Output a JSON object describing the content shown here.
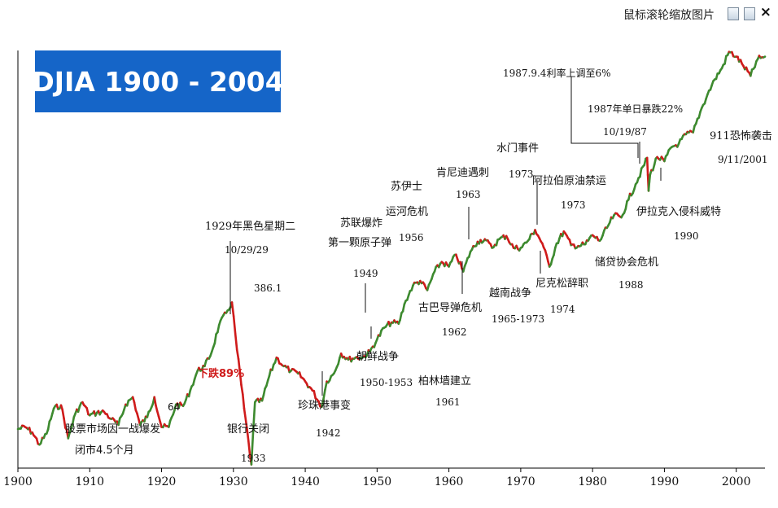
{
  "toolbar": {
    "hint": "鼠标滚轮缩放图片",
    "close": "×",
    "icons": [
      "save-icon",
      "print-icon"
    ]
  },
  "title_box": {
    "text": "DJIA  1900 - 2004",
    "bg": "#1565c8",
    "color": "#ffffff"
  },
  "colors": {
    "up": "#3d8a2f",
    "down": "#cf1b1b",
    "axis": "#000000"
  },
  "chart_data": {
    "type": "line",
    "title": "DJIA  1900 - 2004",
    "xlabel": "",
    "ylabel": "",
    "scale": "log",
    "xlim": [
      1900,
      2004
    ],
    "ylim": [
      40,
      11723
    ],
    "x_ticks": [
      1900,
      1910,
      1920,
      1930,
      1940,
      1950,
      1960,
      1970,
      1980,
      1990,
      2000
    ],
    "x_tick_labels": [
      "1900",
      "1910",
      "1920",
      "1930",
      "1940",
      "1950",
      "1960",
      "1970",
      "1980",
      "1990",
      "2000"
    ],
    "grid": false,
    "legend": "none",
    "series": [
      {
        "color_up": "#3d8a2f",
        "color_down": "#cf1b1b",
        "x": [
          1900,
          1901,
          1902,
          1903,
          1904,
          1905,
          1906,
          1907,
          1908,
          1909,
          1910,
          1911,
          1912,
          1913,
          1914,
          1915,
          1916,
          1917,
          1918,
          1919,
          1920,
          1921,
          1922,
          1923,
          1924,
          1925,
          1926,
          1927,
          1928,
          1929,
          1929.8,
          1930.5,
          1931.5,
          1932.5,
          1933,
          1934,
          1935,
          1936,
          1937,
          1938,
          1939,
          1940,
          1941,
          1942.3,
          1943,
          1944,
          1945,
          1946,
          1947,
          1948,
          1949,
          1950,
          1951,
          1952,
          1953,
          1954,
          1955,
          1956,
          1957,
          1958,
          1959,
          1960,
          1961,
          1962,
          1963,
          1964,
          1965,
          1966,
          1967,
          1968,
          1969,
          1970,
          1971,
          1972,
          1973,
          1974,
          1975,
          1976,
          1977,
          1978,
          1979,
          1980,
          1981,
          1982,
          1983,
          1984,
          1985,
          1986,
          1987.6,
          1987.8,
          1988,
          1989,
          1990,
          1991,
          1992,
          1993,
          1994,
          1995,
          1996,
          1997,
          1998,
          1999,
          2000,
          2001,
          2002,
          2003,
          2004
        ],
        "values": [
          68,
          70,
          65,
          55,
          64,
          90,
          94,
          60,
          84,
          98,
          82,
          85,
          86,
          78,
          72,
          95,
          105,
          72,
          80,
          105,
          70,
          70,
          95,
          93,
          115,
          150,
          160,
          195,
          280,
          330,
          381,
          200,
          90,
          42,
          98,
          100,
          140,
          180,
          160,
          150,
          145,
          130,
          115,
          92,
          130,
          145,
          190,
          175,
          180,
          180,
          195,
          230,
          270,
          290,
          285,
          390,
          480,
          510,
          450,
          580,
          660,
          620,
          730,
          580,
          760,
          870,
          900,
          800,
          900,
          940,
          800,
          800,
          880,
          1020,
          850,
          620,
          850,
          1000,
          830,
          820,
          840,
          950,
          880,
          1050,
          1250,
          1210,
          1540,
          1900,
          2720,
          1738,
          2160,
          2750,
          2600,
          3150,
          3300,
          3750,
          3850,
          5100,
          6450,
          7900,
          9200,
          11500,
          10780,
          9500,
          8300,
          10450,
          10780
        ]
      }
    ],
    "annotations": [
      {
        "text": "股票市场因一战爆发",
        "x": 1914
      },
      {
        "text": "闭市4.5个月",
        "x": 1914
      },
      {
        "text": "64",
        "x": 1921
      },
      {
        "text": "1929年黑色星期二",
        "x": 1929
      },
      {
        "text": "10/29/29",
        "x": 1929
      },
      {
        "text": "386.1",
        "x": 1929
      },
      {
        "text": "下跌89%",
        "x": 1931
      },
      {
        "text": "银行关闭",
        "x": 1933
      },
      {
        "text": "1933",
        "x": 1933
      },
      {
        "text": "珍珠港事变",
        "x": 1942
      },
      {
        "text": "1942",
        "x": 1942
      },
      {
        "text": "苏联爆炸",
        "x": 1949
      },
      {
        "text": "第一颗原子弹",
        "x": 1949
      },
      {
        "text": "1949",
        "x": 1949
      },
      {
        "text": "朝鲜战争",
        "x": 1950
      },
      {
        "text": "1950-1953",
        "x": 1950
      },
      {
        "text": "苏伊士",
        "x": 1956
      },
      {
        "text": "运河危机",
        "x": 1956
      },
      {
        "text": "1956",
        "x": 1956
      },
      {
        "text": "肯尼迪遇刺",
        "x": 1963
      },
      {
        "text": "1963",
        "x": 1963
      },
      {
        "text": "古巴导弹危机",
        "x": 1962
      },
      {
        "text": "1962",
        "x": 1962
      },
      {
        "text": "柏林墙建立",
        "x": 1961
      },
      {
        "text": "1961",
        "x": 1961
      },
      {
        "text": "水门事件",
        "x": 1973
      },
      {
        "text": "1973",
        "x": 1973
      },
      {
        "text": "越南战争",
        "x": 1965
      },
      {
        "text": "1965-1973",
        "x": 1965
      },
      {
        "text": "阿拉伯原油禁运",
        "x": 1973
      },
      {
        "text": "1973",
        "x": 1973
      },
      {
        "text": "尼克松辞职",
        "x": 1974
      },
      {
        "text": "1974",
        "x": 1974
      },
      {
        "text": "1987.9.4利率上调至6%",
        "x": 1987
      },
      {
        "text": "1987年单日暴跌22%",
        "x": 1987
      },
      {
        "text": "10/19/87",
        "x": 1987
      },
      {
        "text": "储贷协会危机",
        "x": 1988
      },
      {
        "text": "1988",
        "x": 1988
      },
      {
        "text": "伊拉克入侵科威特",
        "x": 1990
      },
      {
        "text": "1990",
        "x": 1990
      },
      {
        "text": "911恐怖袭击",
        "x": 2001
      },
      {
        "text": "9/11/2001",
        "x": 2001
      }
    ]
  }
}
